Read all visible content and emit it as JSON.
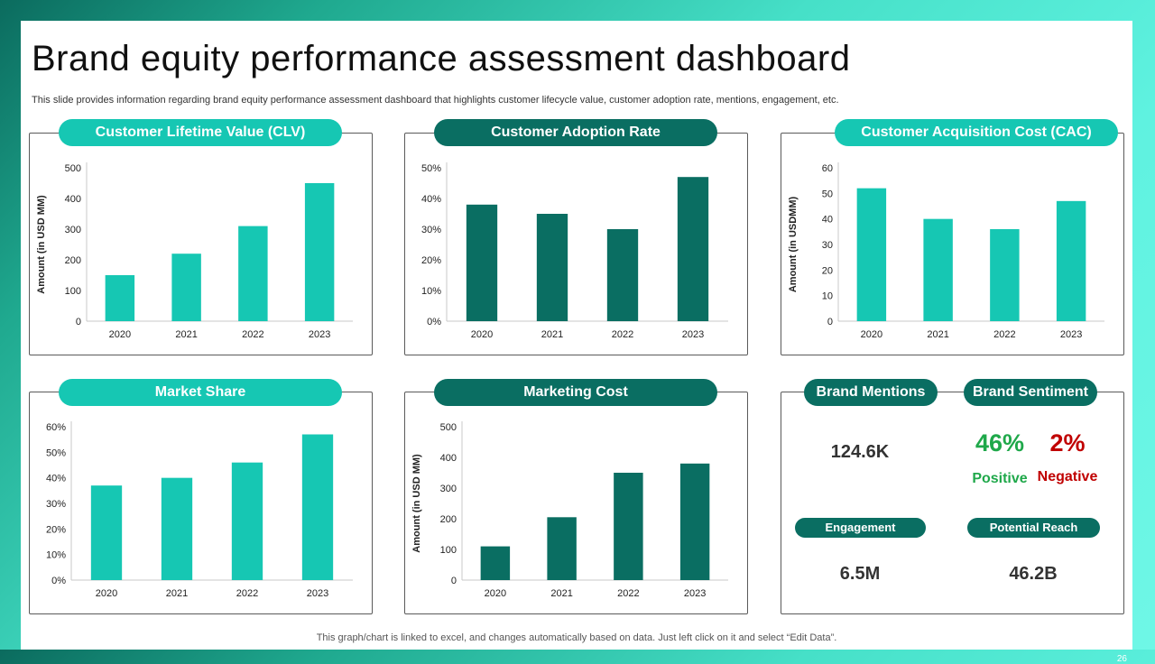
{
  "slide": {
    "title": "Brand equity performance assessment dashboard",
    "subtitle": "This slide provides information regarding brand equity performance assessment dashboard that highlights customer lifecycle value, customer adoption rate, mentions, engagement, etc.",
    "footer": "This graph/chart is linked to excel,  and changes automatically based on data. Just left click on it and select “Edit Data”.",
    "page_number": "26"
  },
  "colors": {
    "light": "#16c7b3",
    "dark": "#0a6e62",
    "positive": "#1fa84a",
    "negative": "#c00000"
  },
  "chart_data": [
    {
      "id": "clv",
      "type": "bar",
      "title": "Customer Lifetime Value (CLV)",
      "categories": [
        "2020",
        "2021",
        "2022",
        "2023"
      ],
      "values": [
        150,
        220,
        310,
        450
      ],
      "ylabel": "Amount (in USD MM)",
      "ylim": [
        0,
        500
      ],
      "ticks": [
        "0",
        "100",
        "200",
        "300",
        "400",
        "500"
      ],
      "color": "light"
    },
    {
      "id": "adoption",
      "type": "bar",
      "title": "Customer Adoption Rate",
      "categories": [
        "2020",
        "2021",
        "2022",
        "2023"
      ],
      "values": [
        38,
        35,
        30,
        47
      ],
      "ylabel": "",
      "ylim": [
        0,
        50
      ],
      "ticks": [
        "0%",
        "10%",
        "20%",
        "30%",
        "40%",
        "50%"
      ],
      "color": "dark"
    },
    {
      "id": "cac",
      "type": "bar",
      "title": "Customer Acquisition Cost (CAC)",
      "categories": [
        "2020",
        "2021",
        "2022",
        "2023"
      ],
      "values": [
        52,
        40,
        36,
        47
      ],
      "ylabel": "Amount (in USDMM)",
      "ylim": [
        0,
        60
      ],
      "ticks": [
        "0",
        "10",
        "20",
        "30",
        "40",
        "50",
        "60"
      ],
      "color": "light"
    },
    {
      "id": "market",
      "type": "bar",
      "title": "Market Share",
      "categories": [
        "2020",
        "2021",
        "2022",
        "2023"
      ],
      "values": [
        37,
        40,
        46,
        57
      ],
      "ylabel": "",
      "ylim": [
        0,
        60
      ],
      "ticks": [
        "0%",
        "10%",
        "20%",
        "30%",
        "40%",
        "50%",
        "60%"
      ],
      "color": "light"
    },
    {
      "id": "marketing",
      "type": "bar",
      "title": "Marketing Cost",
      "categories": [
        "2020",
        "2021",
        "2022",
        "2023"
      ],
      "values": [
        110,
        205,
        350,
        380
      ],
      "ylabel": "Amount (in USD MM)",
      "ylim": [
        0,
        500
      ],
      "ticks": [
        "0",
        "100",
        "200",
        "300",
        "400",
        "500"
      ],
      "color": "dark"
    }
  ],
  "kpis": {
    "brand_mentions_title": "Brand Mentions",
    "brand_mentions_value": "124.6K",
    "brand_sentiment_title": "Brand Sentiment",
    "positive_value": "46%",
    "positive_label": "Positive",
    "negative_value": "2%",
    "negative_label": "Negative",
    "engagement_title": "Engagement",
    "engagement_value": "6.5M",
    "reach_title": "Potential Reach",
    "reach_value": "46.2B"
  }
}
